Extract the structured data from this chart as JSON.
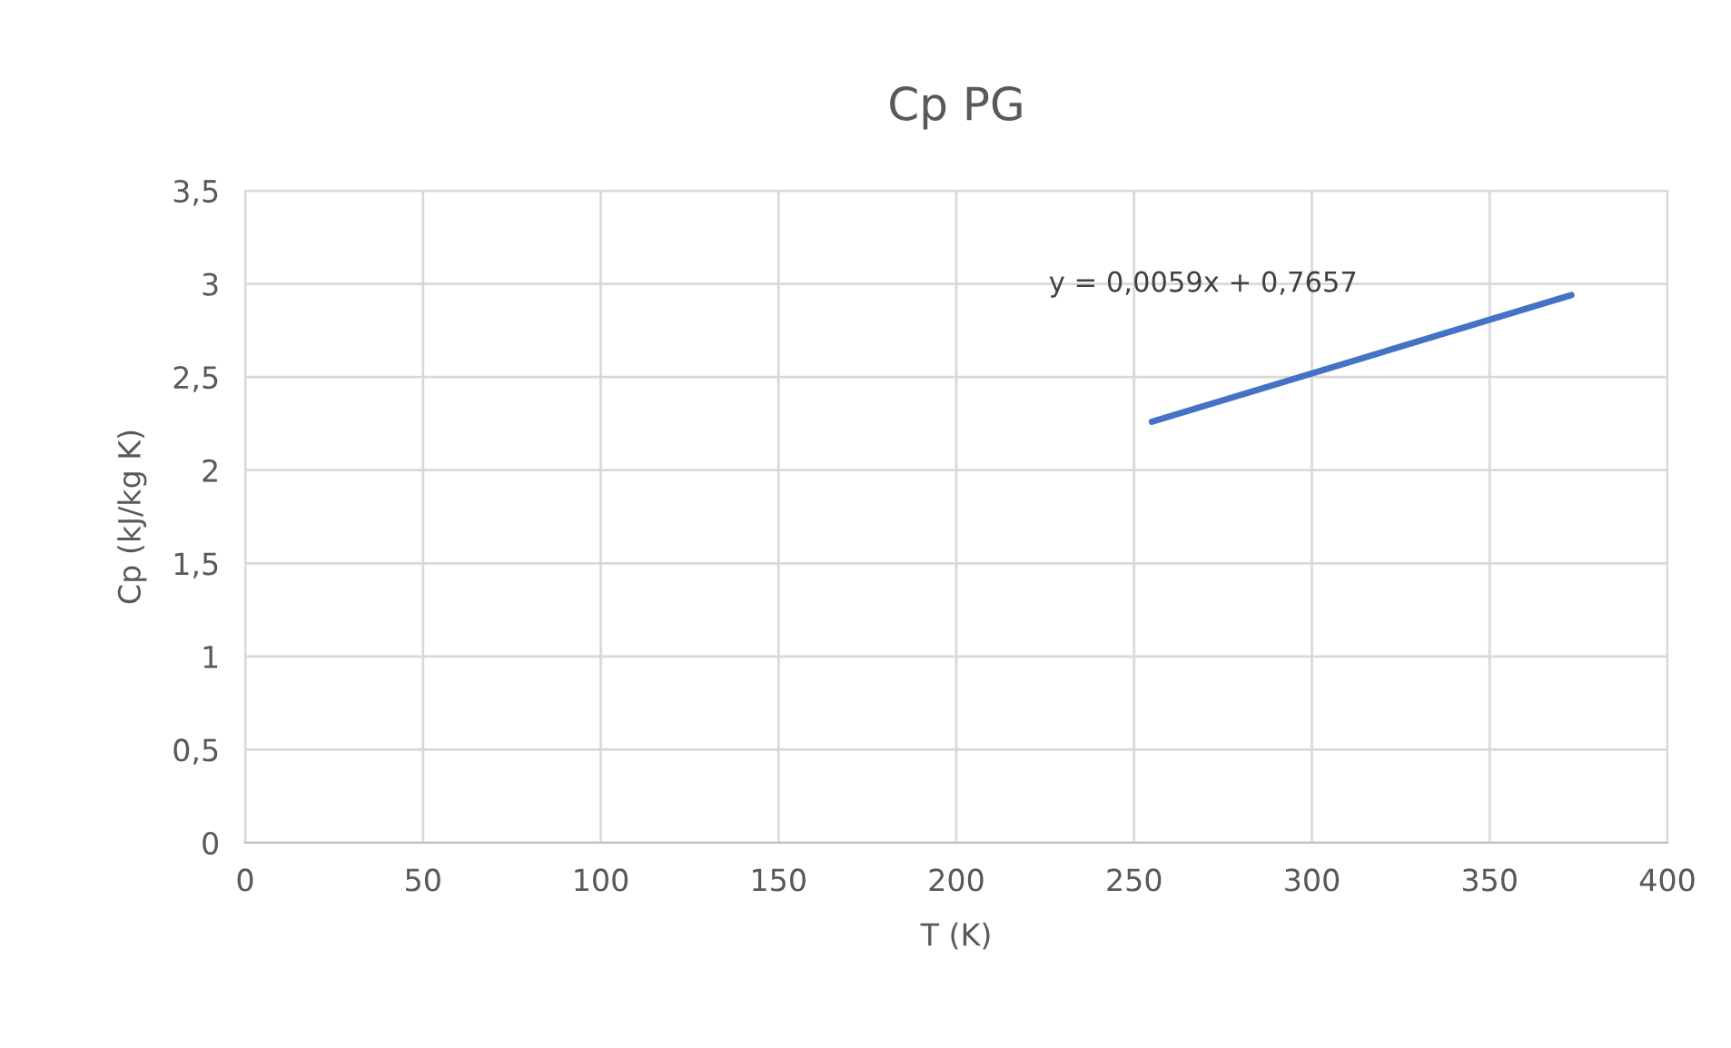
{
  "chart_data": {
    "type": "line",
    "title": "Cp PG",
    "xlabel": "T (K)",
    "ylabel": "Cp (kJ/kg K)",
    "annotations": [
      "y = 0,0059x + 0,7657"
    ],
    "series": [
      {
        "color": "#4472c4",
        "x": [
          255,
          373
        ],
        "values": [
          2.26,
          2.94
        ]
      }
    ],
    "xlim": [
      0,
      400
    ],
    "xticks": [
      0,
      50,
      100,
      150,
      200,
      250,
      300,
      350,
      400
    ],
    "ylim": [
      0,
      3.5
    ],
    "yticks": [
      0,
      {
        "value": 0.5,
        "label": "0,5"
      },
      1,
      {
        "value": 1.5,
        "label": "1,5"
      },
      2,
      {
        "value": 2.5,
        "label": "2,5"
      },
      3,
      {
        "value": 3.5,
        "label": "3,5"
      }
    ],
    "grid": true,
    "marker": "none",
    "line_style": "solid"
  }
}
